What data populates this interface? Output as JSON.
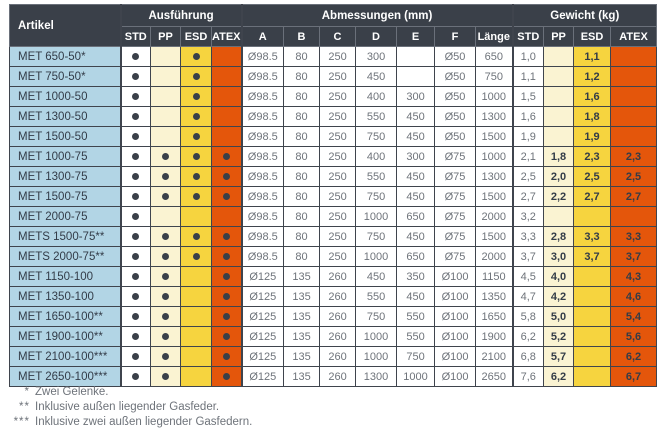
{
  "table": {
    "header": {
      "artikel": "Artikel",
      "ausfuehrung": "Ausführung",
      "abmessungen": "Abmessungen (mm)",
      "gewicht": "Gewicht  (kg)",
      "exec_cols": [
        "STD",
        "PP",
        "ESD",
        "ATEX"
      ],
      "dim_cols": [
        "A",
        "B",
        "C",
        "D",
        "E",
        "F",
        "Länge"
      ],
      "weight_cols": [
        "STD",
        "PP",
        "ESD",
        "ATEX"
      ]
    },
    "rows": [
      {
        "artikel": "MET 650-50*",
        "exec": [
          true,
          false,
          true,
          false
        ],
        "dims": [
          "Ø98.5",
          "80",
          "250",
          "300",
          "",
          "Ø50",
          "650"
        ],
        "weights": [
          "1,0",
          "",
          "1,1",
          ""
        ]
      },
      {
        "artikel": "MET 750-50*",
        "exec": [
          true,
          false,
          true,
          false
        ],
        "dims": [
          "Ø98.5",
          "80",
          "250",
          "450",
          "",
          "Ø50",
          "750"
        ],
        "weights": [
          "1,1",
          "",
          "1,2",
          ""
        ]
      },
      {
        "artikel": "MET 1000-50",
        "exec": [
          true,
          false,
          true,
          false
        ],
        "dims": [
          "Ø98.5",
          "80",
          "250",
          "400",
          "300",
          "Ø50",
          "1000"
        ],
        "weights": [
          "1,5",
          "",
          "1,6",
          ""
        ]
      },
      {
        "artikel": "MET 1300-50",
        "exec": [
          true,
          false,
          true,
          false
        ],
        "dims": [
          "Ø98.5",
          "80",
          "250",
          "550",
          "450",
          "Ø50",
          "1300"
        ],
        "weights": [
          "1,6",
          "",
          "1,8",
          ""
        ]
      },
      {
        "artikel": "MET 1500-50",
        "exec": [
          true,
          false,
          true,
          false
        ],
        "dims": [
          "Ø98.5",
          "80",
          "250",
          "750",
          "450",
          "Ø50",
          "1500"
        ],
        "weights": [
          "1,9",
          "",
          "1,9",
          ""
        ]
      },
      {
        "artikel": "MET 1000-75",
        "exec": [
          true,
          true,
          true,
          true
        ],
        "dims": [
          "Ø98.5",
          "80",
          "250",
          "400",
          "300",
          "Ø75",
          "1000"
        ],
        "weights": [
          "2,1",
          "1,8",
          "2,3",
          "2,3"
        ]
      },
      {
        "artikel": "MET 1300-75",
        "exec": [
          true,
          true,
          true,
          true
        ],
        "dims": [
          "Ø98.5",
          "80",
          "250",
          "550",
          "450",
          "Ø75",
          "1300"
        ],
        "weights": [
          "2,5",
          "2,0",
          "2,5",
          "2,5"
        ]
      },
      {
        "artikel": "MET 1500-75",
        "exec": [
          true,
          true,
          true,
          true
        ],
        "dims": [
          "Ø98.5",
          "80",
          "250",
          "750",
          "450",
          "Ø75",
          "1500"
        ],
        "weights": [
          "2,7",
          "2,2",
          "2,7",
          "2,7"
        ]
      },
      {
        "artikel": "MET 2000-75",
        "exec": [
          true,
          false,
          false,
          false
        ],
        "dims": [
          "Ø98.5",
          "80",
          "250",
          "1000",
          "650",
          "Ø75",
          "2000"
        ],
        "weights": [
          "3,2",
          "",
          "",
          ""
        ]
      },
      {
        "artikel": "METS 1500-75**",
        "exec": [
          true,
          true,
          true,
          true
        ],
        "dims": [
          "Ø98.5",
          "80",
          "250",
          "750",
          "450",
          "Ø75",
          "1500"
        ],
        "weights": [
          "3,3",
          "2,8",
          "3,3",
          "3,3"
        ]
      },
      {
        "artikel": "METS 2000-75**",
        "exec": [
          true,
          true,
          true,
          true
        ],
        "dims": [
          "Ø98.5",
          "80",
          "250",
          "1000",
          "650",
          "Ø75",
          "2000"
        ],
        "weights": [
          "3,7",
          "3,0",
          "3,7",
          "3,7"
        ]
      },
      {
        "artikel": "MET 1150-100",
        "exec": [
          true,
          true,
          false,
          true
        ],
        "dims": [
          "Ø125",
          "135",
          "260",
          "450",
          "350",
          "Ø100",
          "1150"
        ],
        "weights": [
          "4,5",
          "4,0",
          "",
          "4,3"
        ]
      },
      {
        "artikel": "MET 1350-100",
        "exec": [
          true,
          true,
          false,
          true
        ],
        "dims": [
          "Ø125",
          "135",
          "260",
          "550",
          "450",
          "Ø100",
          "1350"
        ],
        "weights": [
          "4,7",
          "4,2",
          "",
          "4,6"
        ]
      },
      {
        "artikel": "MET 1650-100**",
        "exec": [
          true,
          true,
          false,
          true
        ],
        "dims": [
          "Ø125",
          "135",
          "260",
          "750",
          "550",
          "Ø100",
          "1650"
        ],
        "weights": [
          "5,8",
          "5,0",
          "",
          "5,4"
        ]
      },
      {
        "artikel": "MET 1900-100**",
        "exec": [
          true,
          true,
          false,
          true
        ],
        "dims": [
          "Ø125",
          "135",
          "260",
          "1000",
          "550",
          "Ø100",
          "1900"
        ],
        "weights": [
          "6,2",
          "5,2",
          "",
          "5,6"
        ]
      },
      {
        "artikel": "MET 2100-100***",
        "exec": [
          true,
          true,
          false,
          true
        ],
        "dims": [
          "Ø125",
          "135",
          "260",
          "1000",
          "750",
          "Ø100",
          "2100"
        ],
        "weights": [
          "6,8",
          "5,7",
          "",
          "6,2"
        ]
      },
      {
        "artikel": "MET 2650-100***",
        "exec": [
          true,
          true,
          false,
          true
        ],
        "dims": [
          "Ø125",
          "135",
          "260",
          "1300",
          "1000",
          "Ø100",
          "2650"
        ],
        "weights": [
          "7,6",
          "6,2",
          "",
          "6,7"
        ]
      }
    ],
    "notes": [
      {
        "mark": "*",
        "text": "Zwei Gelenke."
      },
      {
        "mark": "**",
        "text": "Inklusive außen liegender Gasfeder."
      },
      {
        "mark": "***",
        "text": "Inklusive zwei außen liegender Gasfedern."
      }
    ],
    "colors": {
      "header-bg": "#3A4049",
      "artikel-bg": "#B2D5E5",
      "pp-bg": "#FAF3D2",
      "esd-bg": "#F6D43F",
      "atex-bg": "#E4560B",
      "dot": "#3A4049",
      "border": "#3F444D",
      "text-dark": "#333C48",
      "text-gray": "#6E737A"
    }
  }
}
